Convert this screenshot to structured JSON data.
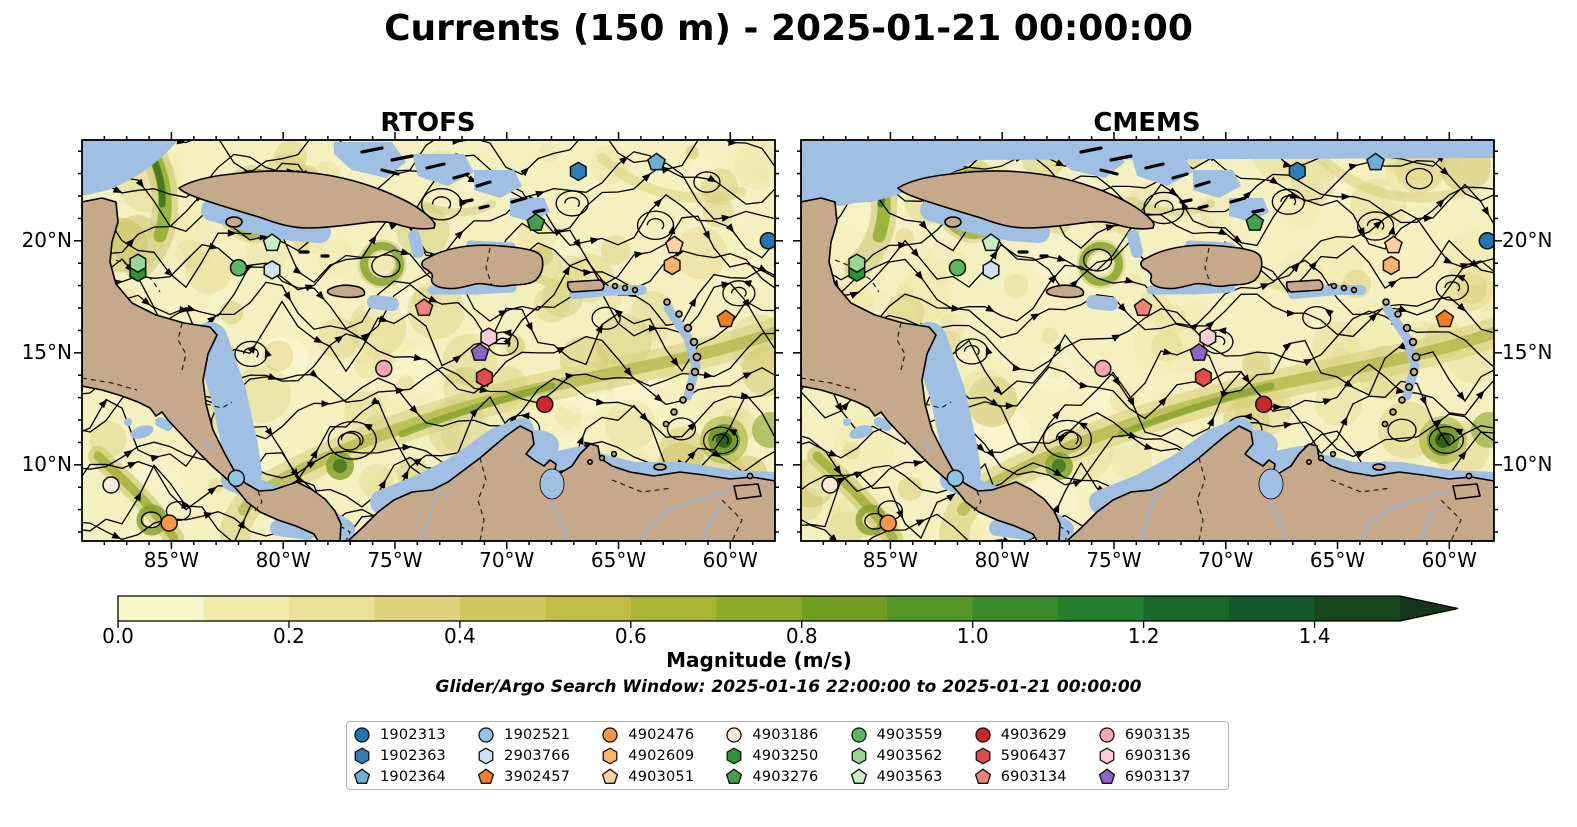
{
  "chart_data": {
    "type": "streamplot-map-comparison",
    "title": "Currents (150 m) - 2025-01-21 00:00:00",
    "panels": [
      {
        "name": "RTOFS"
      },
      {
        "name": "CMEMS"
      }
    ],
    "projection": {
      "lon_min": -89,
      "lon_max": -58,
      "lat_min": 6.6,
      "lat_max": 24.5
    },
    "x_ticks": {
      "labels": [
        "85°W",
        "80°W",
        "75°W",
        "70°W",
        "65°W",
        "60°W"
      ],
      "lons": [
        -85,
        -80,
        -75,
        -70,
        -65,
        -60
      ]
    },
    "y_ticks": {
      "labels": [
        "20°N",
        "15°N",
        "10°N"
      ],
      "lats": [
        20,
        15,
        10
      ]
    },
    "colorbar": {
      "label": "Magnitude (m/s)",
      "tick_labels": [
        "0.0",
        "0.2",
        "0.4",
        "0.6",
        "0.8",
        "1.0",
        "1.2",
        "1.4"
      ],
      "tick_values": [
        0.0,
        0.2,
        0.4,
        0.6,
        0.8,
        1.0,
        1.2,
        1.4
      ],
      "vmin": 0.0,
      "vmax": 1.5,
      "extend": "max",
      "segment_colors": [
        "#faf7c9",
        "#f2ecac",
        "#e9e296",
        "#ddd47b",
        "#d0c75f",
        "#bfbd46",
        "#a9b434",
        "#8fa929",
        "#6f9e23",
        "#539526",
        "#388a2a",
        "#237e2d",
        "#19682b",
        "#145829",
        "#17471f"
      ],
      "extend_color": "#14361b"
    },
    "caption": "Glider/Argo Search Window: 2025-01-16 22:00:00 to 2025-01-21 00:00:00",
    "floats": [
      {
        "id": "1902313",
        "shape": "circle",
        "color": "#1f77b4",
        "lon": -58.3,
        "lat": 20.0
      },
      {
        "id": "1902363",
        "shape": "hexagon",
        "color": "#2e7ebc",
        "lon": -66.8,
        "lat": 23.1
      },
      {
        "id": "1902364",
        "shape": "pentagon",
        "color": "#6baed6",
        "lon": -63.3,
        "lat": 23.5
      },
      {
        "id": "1902521",
        "shape": "circle",
        "color": "#8fc6e8",
        "lon": -82.1,
        "lat": 9.4
      },
      {
        "id": "2903766",
        "shape": "hexagon",
        "color": "#cde2f2",
        "lon": -80.5,
        "lat": 18.7
      },
      {
        "id": "3902457",
        "shape": "pentagon",
        "color": "#f57e20",
        "lon": -60.2,
        "lat": 16.5
      },
      {
        "id": "4902476",
        "shape": "circle",
        "color": "#f79646",
        "lon": -85.1,
        "lat": 7.4
      },
      {
        "id": "4902609",
        "shape": "hexagon",
        "color": "#fbb26d",
        "lon": -62.6,
        "lat": 18.9
      },
      {
        "id": "4903051",
        "shape": "pentagon",
        "color": "#fdd0a2",
        "lon": -62.5,
        "lat": 19.8
      },
      {
        "id": "4903186",
        "shape": "circle",
        "color": "#fde9d9",
        "lon": -87.7,
        "lat": 9.1
      },
      {
        "id": "4903250",
        "shape": "hexagon",
        "color": "#2d9437",
        "lon": -86.5,
        "lat": 18.6
      },
      {
        "id": "4903276",
        "shape": "pentagon",
        "color": "#41a048",
        "lon": -68.7,
        "lat": 20.8
      },
      {
        "id": "4903559",
        "shape": "circle",
        "color": "#5cb85f",
        "lon": -82.0,
        "lat": 18.8
      },
      {
        "id": "4903562",
        "shape": "hexagon",
        "color": "#97d694",
        "lon": -86.5,
        "lat": 19.0
      },
      {
        "id": "4903563",
        "shape": "pentagon",
        "color": "#c9edc4",
        "lon": -80.5,
        "lat": 19.9
      },
      {
        "id": "4903629",
        "shape": "circle",
        "color": "#cc2628",
        "lon": -68.3,
        "lat": 12.7
      },
      {
        "id": "5906437",
        "shape": "hexagon",
        "color": "#e04b4a",
        "lon": -71.0,
        "lat": 13.9
      },
      {
        "id": "6903134",
        "shape": "pentagon",
        "color": "#ef837b",
        "lon": -73.7,
        "lat": 17.0
      },
      {
        "id": "6903135",
        "shape": "circle",
        "color": "#f7a6b0",
        "lon": -75.5,
        "lat": 14.3
      },
      {
        "id": "6903136",
        "shape": "hexagon",
        "color": "#fbccd5",
        "lon": -70.8,
        "lat": 15.7
      },
      {
        "id": "6903137",
        "shape": "pentagon",
        "color": "#8d63c3",
        "lon": -71.2,
        "lat": 15.0
      }
    ],
    "legend_columns": [
      [
        "1902313",
        "1902363",
        "1902364"
      ],
      [
        "1902521",
        "2903766",
        "3902457"
      ],
      [
        "4902476",
        "4902609",
        "4903051"
      ],
      [
        "4903186",
        "4903250",
        "4903276"
      ],
      [
        "4903559",
        "4903562",
        "4903563"
      ],
      [
        "4903629",
        "5906437",
        "6903134"
      ],
      [
        "6903135",
        "6903136",
        "6903137"
      ]
    ],
    "map_colors": {
      "land": "#c6a88a",
      "coastline": "#000000",
      "masked_water": "#9fc0e2",
      "river": "#8fb7de",
      "ocean_base": "#f5f0bf",
      "streamline": "#000000"
    }
  }
}
